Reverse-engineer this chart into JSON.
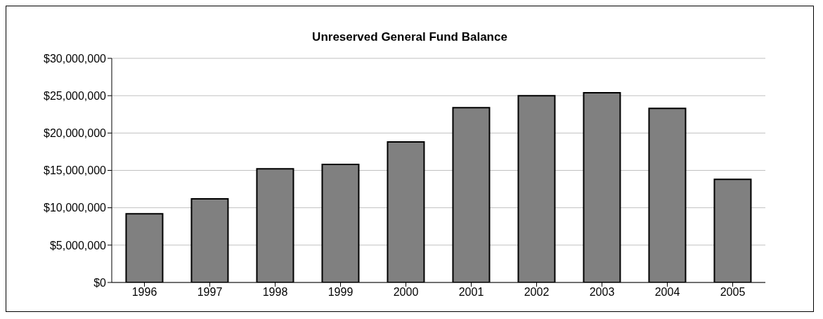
{
  "chart_data": {
    "type": "bar",
    "title": "Unreserved General Fund Balance",
    "categories": [
      "1996",
      "1997",
      "1998",
      "1999",
      "2000",
      "2001",
      "2002",
      "2003",
      "2004",
      "2005"
    ],
    "values": [
      9200000,
      11200000,
      15200000,
      15800000,
      18800000,
      23400000,
      25000000,
      25400000,
      23300000,
      13800000
    ],
    "color": "#808080",
    "ylim": [
      0,
      30000000
    ],
    "yticks": [
      {
        "value": 0,
        "label": "$0"
      },
      {
        "value": 5000000,
        "label": "$5,000,000"
      },
      {
        "value": 10000000,
        "label": "$10,000,000"
      },
      {
        "value": 15000000,
        "label": "$15,000,000"
      },
      {
        "value": 20000000,
        "label": "$20,000,000"
      },
      {
        "value": 25000000,
        "label": "$25,000,000"
      },
      {
        "value": 30000000,
        "label": "$30,000,000"
      }
    ],
    "grid": "y"
  }
}
